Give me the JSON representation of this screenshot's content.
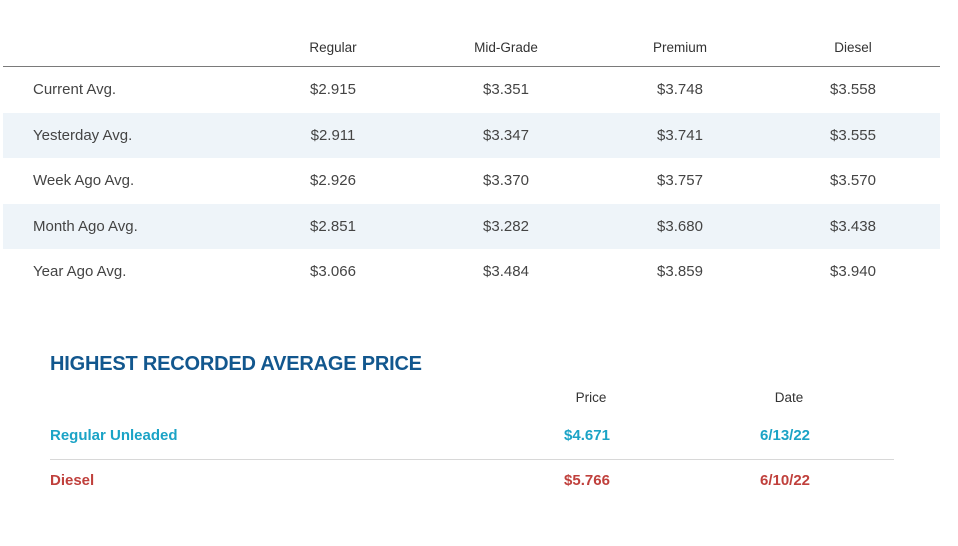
{
  "averages": {
    "headers": [
      "Regular",
      "Mid-Grade",
      "Premium",
      "Diesel"
    ],
    "rows": [
      {
        "label": "Current Avg.",
        "values": [
          "$2.915",
          "$3.351",
          "$3.748",
          "$3.558"
        ]
      },
      {
        "label": "Yesterday Avg.",
        "values": [
          "$2.911",
          "$3.347",
          "$3.741",
          "$3.555"
        ]
      },
      {
        "label": "Week Ago Avg.",
        "values": [
          "$2.926",
          "$3.370",
          "$3.757",
          "$3.570"
        ]
      },
      {
        "label": "Month Ago Avg.",
        "values": [
          "$2.851",
          "$3.282",
          "$3.680",
          "$3.438"
        ]
      },
      {
        "label": "Year Ago Avg.",
        "values": [
          "$3.066",
          "$3.484",
          "$3.859",
          "$3.940"
        ]
      }
    ]
  },
  "highest": {
    "title": "HIGHEST RECORDED AVERAGE PRICE",
    "headers": [
      "Price",
      "Date"
    ],
    "rows": [
      {
        "label": "Regular Unleaded",
        "price": "$4.671",
        "date": "6/13/22",
        "color": "#1ba3c6"
      },
      {
        "label": "Diesel",
        "price": "$5.766",
        "date": "6/10/22",
        "color": "#c0403c"
      }
    ]
  }
}
